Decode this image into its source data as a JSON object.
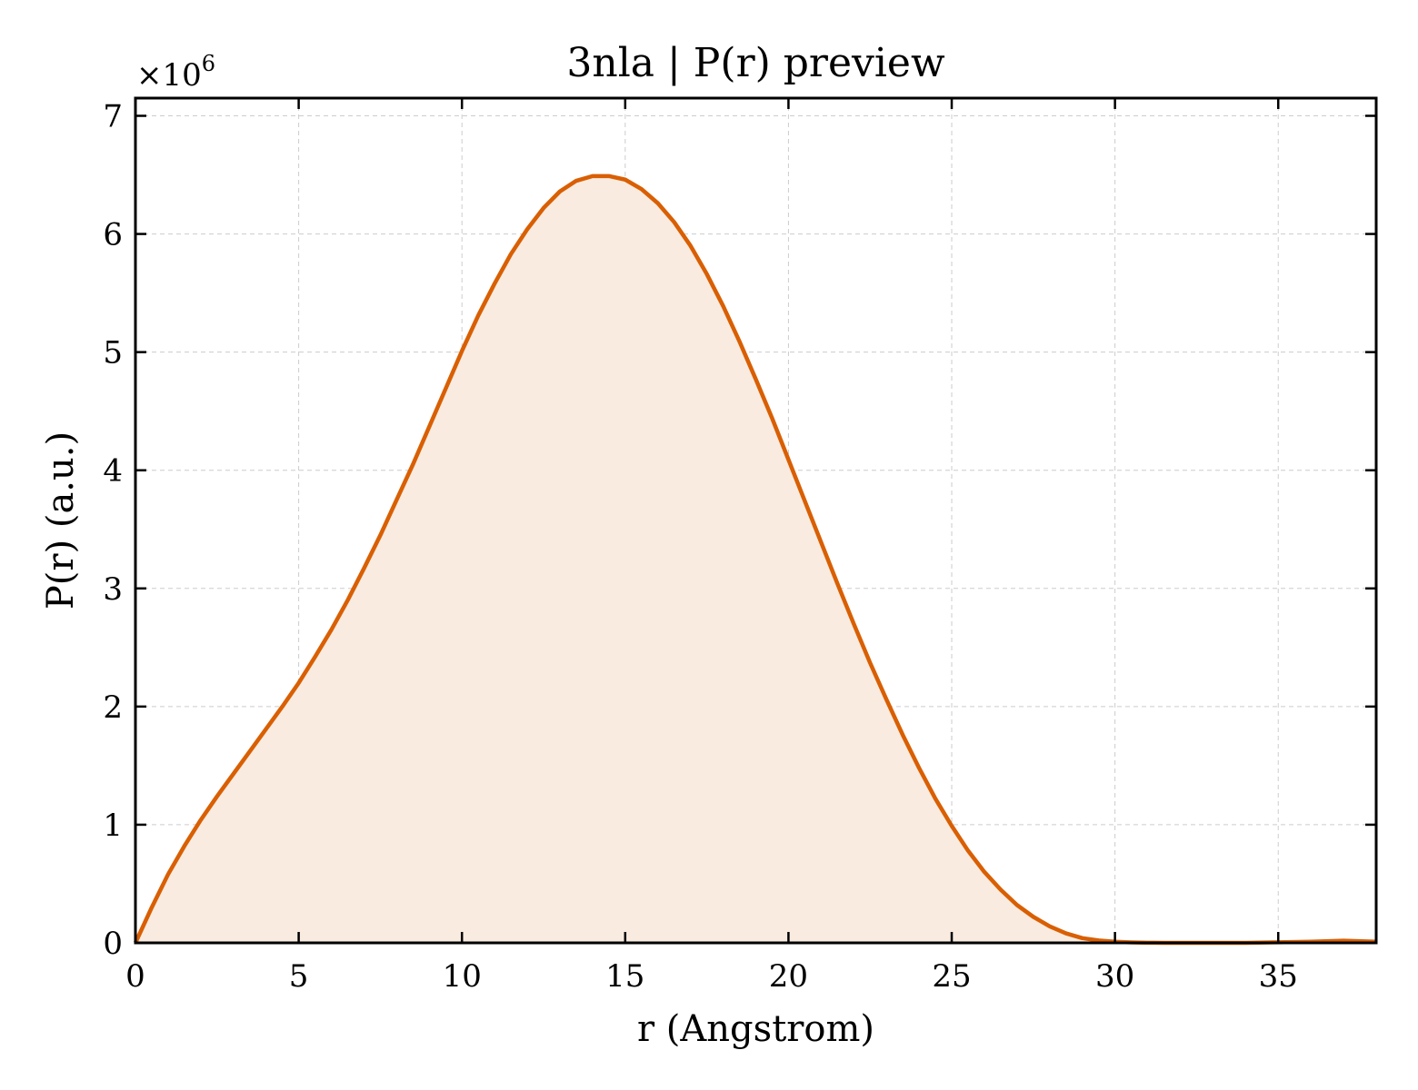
{
  "chart_data": {
    "type": "area",
    "title": "3nla | P(r) preview",
    "xlabel": "r (Angstrom)",
    "ylabel": "P(r) (a.u.)",
    "y_multiplier_label": "×10",
    "y_multiplier_exponent": "6",
    "xlim": [
      0,
      38
    ],
    "ylim": [
      0,
      7.15
    ],
    "x_ticks": [
      0,
      5,
      10,
      15,
      20,
      25,
      30,
      35
    ],
    "y_ticks": [
      0,
      1,
      2,
      3,
      4,
      5,
      6,
      7
    ],
    "x_tick_labels": [
      "0",
      "5",
      "10",
      "15",
      "20",
      "25",
      "30",
      "35"
    ],
    "y_tick_labels": [
      "0",
      "1",
      "2",
      "3",
      "4",
      "5",
      "6",
      "7"
    ],
    "grid": true,
    "line_color": "#d95f02",
    "fill_color": "#f9ebe0",
    "series": [
      {
        "x": [
          0,
          0.5,
          1,
          1.5,
          2,
          2.5,
          3,
          3.5,
          4,
          4.5,
          5,
          5.5,
          6,
          6.5,
          7,
          7.5,
          8,
          8.5,
          9,
          9.5,
          10,
          10.5,
          11,
          11.5,
          12,
          12.5,
          13,
          13.5,
          14,
          14.5,
          15,
          15.5,
          16,
          16.5,
          17,
          17.5,
          18,
          18.5,
          19,
          19.5,
          20,
          20.5,
          21,
          21.5,
          22,
          22.5,
          23,
          23.5,
          24,
          24.5,
          25,
          25.5,
          26,
          26.5,
          27,
          27.5,
          28,
          28.5,
          29,
          29.5,
          30,
          30.5,
          31,
          31.5,
          32,
          32.5,
          33,
          34,
          35,
          36,
          37,
          38
        ],
        "y": [
          0,
          0.3,
          0.58,
          0.82,
          1.04,
          1.24,
          1.43,
          1.62,
          1.81,
          2.0,
          2.2,
          2.42,
          2.65,
          2.9,
          3.17,
          3.45,
          3.75,
          4.05,
          4.37,
          4.69,
          5.01,
          5.31,
          5.58,
          5.83,
          6.04,
          6.22,
          6.36,
          6.45,
          6.49,
          6.49,
          6.46,
          6.38,
          6.26,
          6.1,
          5.9,
          5.66,
          5.39,
          5.09,
          4.77,
          4.44,
          4.09,
          3.74,
          3.39,
          3.04,
          2.7,
          2.37,
          2.06,
          1.76,
          1.48,
          1.22,
          0.99,
          0.78,
          0.6,
          0.45,
          0.32,
          0.22,
          0.14,
          0.08,
          0.04,
          0.02,
          0.01,
          0.004,
          0.001,
          0,
          0,
          0,
          0,
          0,
          0.005,
          0.01,
          0.018,
          0.01
        ]
      }
    ]
  }
}
